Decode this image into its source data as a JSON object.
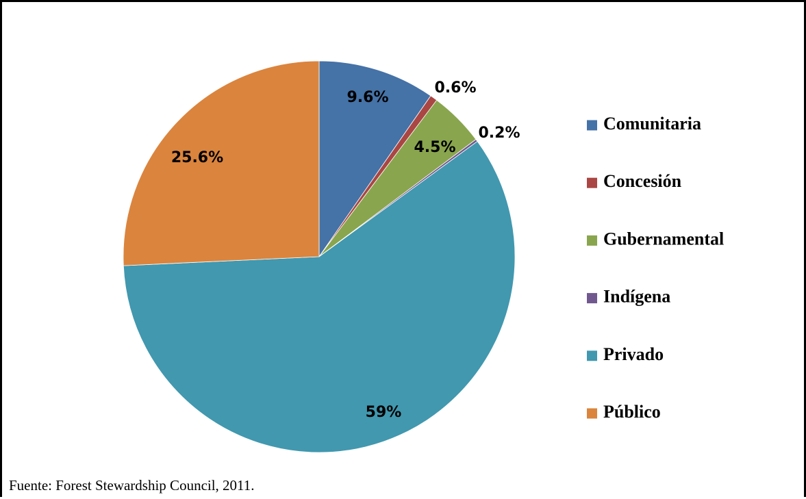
{
  "chart_data": {
    "type": "pie",
    "categories": [
      "Comunitaria",
      "Concesión",
      "Gubernamental",
      "Indígena",
      "Privado",
      "Público"
    ],
    "values": [
      9.6,
      0.6,
      4.5,
      0.2,
      59,
      25.6
    ],
    "data_labels": [
      "9.6%",
      "0.6%",
      "4.5%",
      "0.2%",
      "59%",
      "25.6%"
    ],
    "colors": [
      "#4572A7",
      "#AA4643",
      "#89A54E",
      "#71588F",
      "#4198AF",
      "#DB843D"
    ],
    "start_angle_deg": 0,
    "direction": "clockwise",
    "legend_position": "right"
  },
  "source_note": "Fuente: Forest Stewardship Council, 2011."
}
